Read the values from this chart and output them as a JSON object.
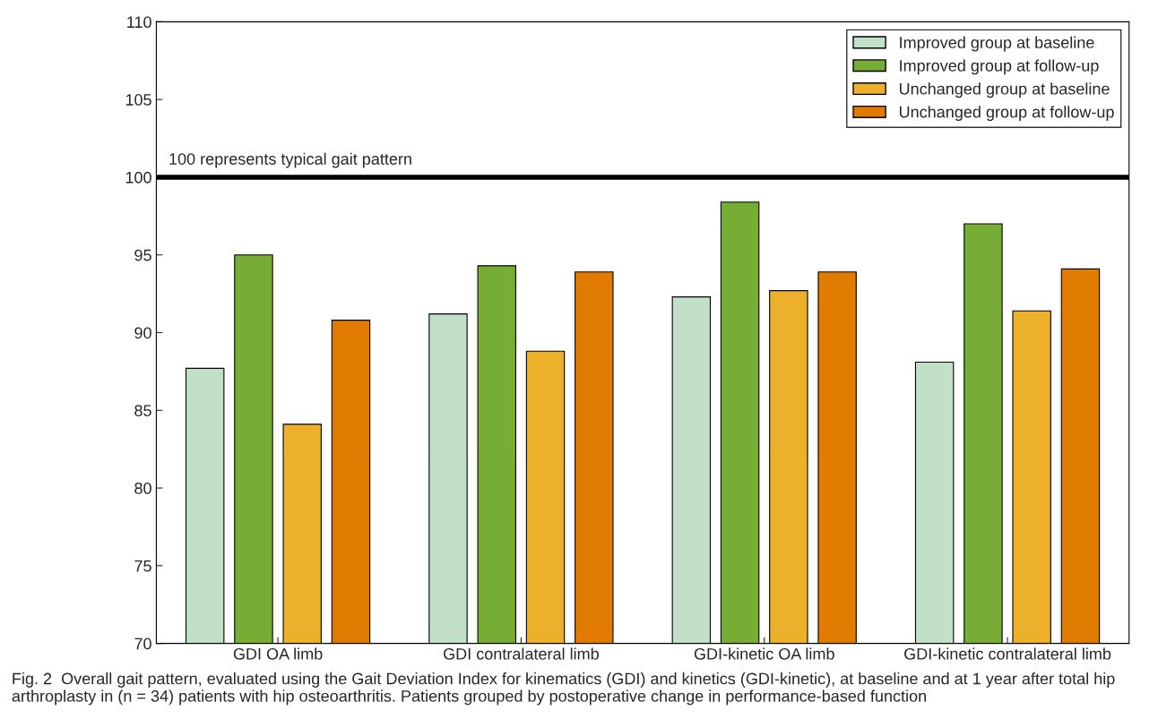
{
  "chart_data": {
    "type": "bar",
    "categories": [
      "GDI OA limb",
      "GDI contralateral limb",
      "GDI-kinetic OA limb",
      "GDI-kinetic contralateral limb"
    ],
    "series": [
      {
        "name": "Improved group at baseline",
        "color": "#c2e0c8",
        "values": [
          87.7,
          91.2,
          92.3,
          88.1
        ]
      },
      {
        "name": "Improved group at follow-up",
        "color": "#76ad35",
        "values": [
          95.0,
          94.3,
          98.4,
          97.0
        ]
      },
      {
        "name": "Unchanged group at baseline",
        "color": "#edb02a",
        "values": [
          84.1,
          88.8,
          92.7,
          91.4
        ]
      },
      {
        "name": "Unchanged group at follow-up",
        "color": "#e07b00",
        "values": [
          90.8,
          93.9,
          93.9,
          94.1
        ]
      }
    ],
    "ylim": [
      70,
      110
    ],
    "yticks": [
      70,
      75,
      80,
      85,
      90,
      95,
      100,
      105,
      110
    ],
    "ref_lines": [
      {
        "axis": "y",
        "value": 100,
        "label": "100 represents typical gait pattern",
        "color": "#000000"
      }
    ],
    "legend": "top right",
    "grid": false,
    "annotations": [
      "Fig. 2  Overall gait pattern, evaluated using the Gait Deviation Index for kinematics (GDI) and kinetics (GDI-kinetic), at baseline and at 1 year after total hip arthroplasty in (n = 34) patients with hip osteoarthritis. Patients grouped by postoperative change in performance-based function"
    ]
  }
}
